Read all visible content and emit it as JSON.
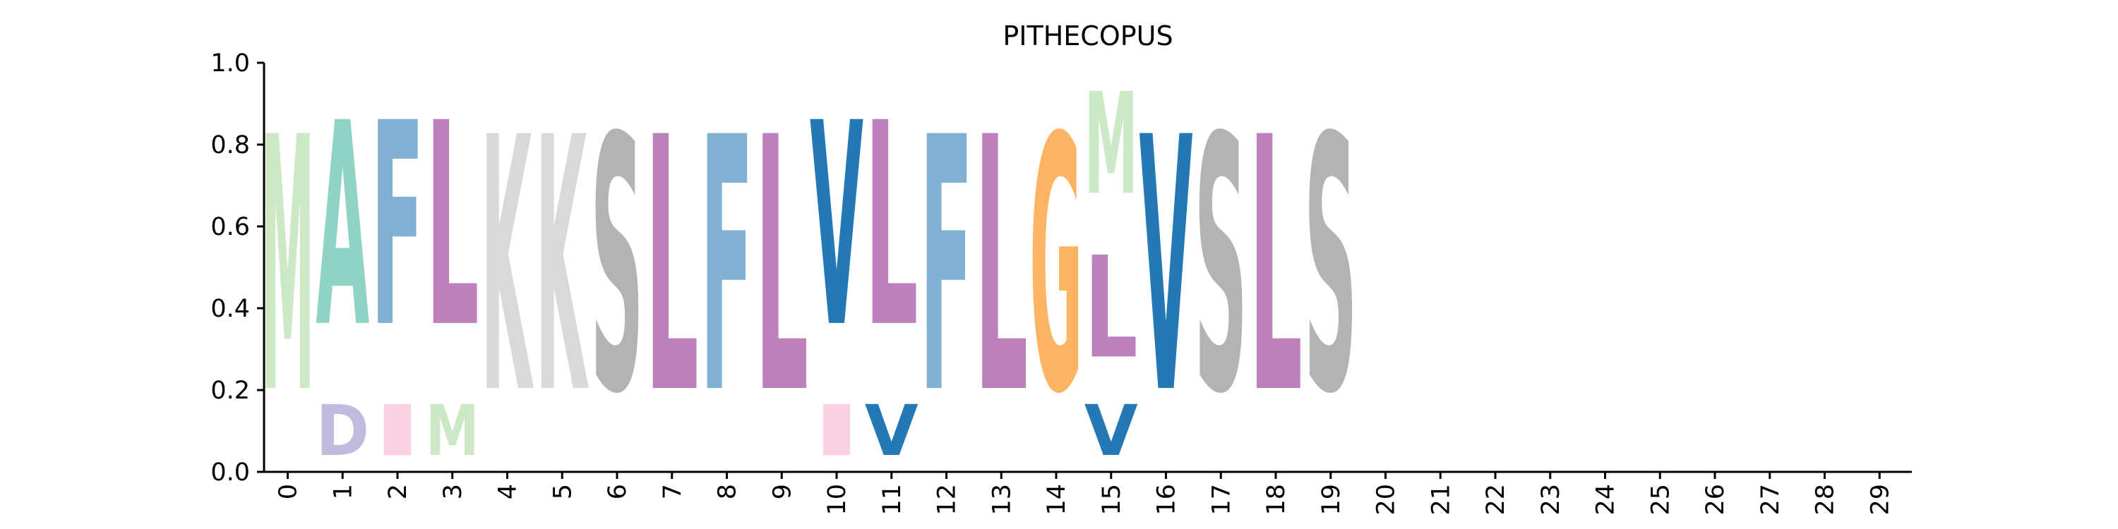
{
  "chart_data": {
    "type": "sequence-logo",
    "title": "PITHECOPUS",
    "xlabel": "",
    "ylabel": "",
    "ylim": [
      0,
      1.0
    ],
    "yticks": [
      "0.0",
      "0.2",
      "0.4",
      "0.6",
      "0.8",
      "1.0"
    ],
    "xticks": [
      "0",
      "1",
      "2",
      "3",
      "4",
      "5",
      "6",
      "7",
      "8",
      "9",
      "10",
      "11",
      "12",
      "13",
      "14",
      "15",
      "16",
      "17",
      "18",
      "19",
      "20",
      "21",
      "22",
      "23",
      "24",
      "25",
      "26",
      "27",
      "28",
      "29"
    ],
    "grid": false,
    "legend": "none",
    "colors": {
      "M": "#cce8c5",
      "A": "#8fd3c4",
      "D": "#bfbbdf",
      "F": "#80b1d3",
      "I": "#fcd0e3",
      "L": "#bc80bd",
      "K": "#d9d9d9",
      "S": "#b3b3b3",
      "V": "#2479b4",
      "G": "#fdb462"
    },
    "positions": [
      {
        "x": 0,
        "letters": [
          {
            "char": "M",
            "value": 1.0
          }
        ]
      },
      {
        "x": 1,
        "letters": [
          {
            "char": "D",
            "value": 0.2
          },
          {
            "char": "A",
            "value": 0.8
          }
        ]
      },
      {
        "x": 2,
        "letters": [
          {
            "char": "I",
            "value": 0.2
          },
          {
            "char": "F",
            "value": 0.8
          }
        ]
      },
      {
        "x": 3,
        "letters": [
          {
            "char": "M",
            "value": 0.2
          },
          {
            "char": "L",
            "value": 0.8
          }
        ]
      },
      {
        "x": 4,
        "letters": [
          {
            "char": "K",
            "value": 1.0
          }
        ]
      },
      {
        "x": 5,
        "letters": [
          {
            "char": "K",
            "value": 1.0
          }
        ]
      },
      {
        "x": 6,
        "letters": [
          {
            "char": "S",
            "value": 1.0
          }
        ]
      },
      {
        "x": 7,
        "letters": [
          {
            "char": "L",
            "value": 1.0
          }
        ]
      },
      {
        "x": 8,
        "letters": [
          {
            "char": "F",
            "value": 1.0
          }
        ]
      },
      {
        "x": 9,
        "letters": [
          {
            "char": "L",
            "value": 1.0
          }
        ]
      },
      {
        "x": 10,
        "letters": [
          {
            "char": "I",
            "value": 0.2
          },
          {
            "char": "V",
            "value": 0.8
          }
        ]
      },
      {
        "x": 11,
        "letters": [
          {
            "char": "V",
            "value": 0.2
          },
          {
            "char": "L",
            "value": 0.8
          }
        ]
      },
      {
        "x": 12,
        "letters": [
          {
            "char": "F",
            "value": 1.0
          }
        ]
      },
      {
        "x": 13,
        "letters": [
          {
            "char": "L",
            "value": 1.0
          }
        ]
      },
      {
        "x": 14,
        "letters": [
          {
            "char": "G",
            "value": 1.0
          }
        ]
      },
      {
        "x": 15,
        "letters": [
          {
            "char": "V",
            "value": 0.2
          },
          {
            "char": "L",
            "value": 0.4
          },
          {
            "char": "M",
            "value": 0.4
          }
        ]
      },
      {
        "x": 16,
        "letters": [
          {
            "char": "V",
            "value": 1.0
          }
        ]
      },
      {
        "x": 17,
        "letters": [
          {
            "char": "S",
            "value": 1.0
          }
        ]
      },
      {
        "x": 18,
        "letters": [
          {
            "char": "L",
            "value": 1.0
          }
        ]
      },
      {
        "x": 19,
        "letters": [
          {
            "char": "S",
            "value": 1.0
          }
        ]
      }
    ]
  }
}
